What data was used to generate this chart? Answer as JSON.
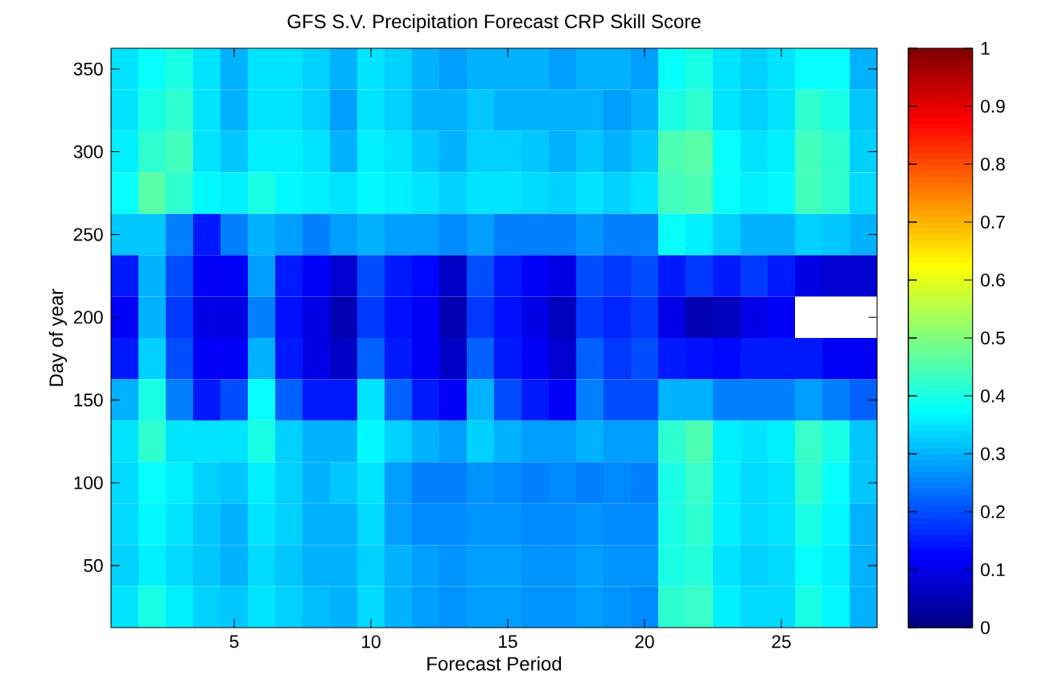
{
  "chart_data": {
    "type": "heatmap",
    "title": "GFS S.V. Precipitation Forecast CRP Skill Score",
    "xlabel": "Forecast Period",
    "ylabel": "Day of year",
    "categories": [
      null,
      null,
      null,
      null,
      "5",
      null,
      null,
      null,
      null,
      "10",
      null,
      null,
      null,
      null,
      "15",
      null,
      null,
      null,
      null,
      "20",
      null,
      null,
      null,
      null,
      "25",
      null,
      null,
      null
    ],
    "y_categories": [
      "350",
      null,
      "300",
      null,
      "250",
      null,
      "200",
      null,
      "150",
      null,
      "100",
      null,
      "50",
      null
    ],
    "clim": [
      0,
      1
    ],
    "cticks": [
      0,
      0.1,
      0.2,
      0.3,
      0.4,
      0.5,
      0.6,
      0.7,
      0.8,
      0.9,
      1
    ],
    "cells": [
      [
        0.35,
        0.38,
        0.4,
        0.35,
        0.3,
        0.35,
        0.35,
        0.33,
        0.3,
        0.35,
        0.33,
        0.3,
        0.28,
        0.3,
        0.3,
        0.3,
        0.28,
        0.3,
        0.3,
        0.28,
        0.38,
        0.4,
        0.35,
        0.33,
        0.35,
        0.38,
        0.38,
        0.3
      ],
      [
        0.35,
        0.4,
        0.42,
        0.35,
        0.3,
        0.35,
        0.35,
        0.33,
        0.28,
        0.35,
        0.33,
        0.3,
        0.3,
        0.32,
        0.3,
        0.3,
        0.3,
        0.3,
        0.28,
        0.3,
        0.4,
        0.42,
        0.35,
        0.33,
        0.35,
        0.42,
        0.4,
        0.32
      ],
      [
        0.36,
        0.42,
        0.44,
        0.35,
        0.32,
        0.36,
        0.36,
        0.35,
        0.3,
        0.36,
        0.35,
        0.32,
        0.3,
        0.33,
        0.33,
        0.32,
        0.3,
        0.32,
        0.3,
        0.32,
        0.45,
        0.46,
        0.38,
        0.35,
        0.36,
        0.44,
        0.42,
        0.33
      ],
      [
        0.38,
        0.46,
        0.42,
        0.37,
        0.36,
        0.4,
        0.37,
        0.36,
        0.35,
        0.37,
        0.36,
        0.35,
        0.33,
        0.35,
        0.35,
        0.34,
        0.33,
        0.35,
        0.33,
        0.35,
        0.44,
        0.45,
        0.38,
        0.36,
        0.37,
        0.44,
        0.42,
        0.34
      ],
      [
        0.32,
        0.32,
        0.25,
        0.15,
        0.25,
        0.3,
        0.28,
        0.25,
        0.28,
        0.3,
        0.28,
        0.28,
        0.26,
        0.28,
        0.25,
        0.25,
        0.25,
        0.27,
        0.25,
        0.25,
        0.38,
        0.36,
        0.33,
        0.3,
        0.3,
        0.33,
        0.32,
        0.3
      ],
      [
        0.15,
        0.3,
        0.2,
        0.12,
        0.12,
        0.28,
        0.15,
        0.12,
        0.08,
        0.2,
        0.15,
        0.13,
        0.07,
        0.2,
        0.15,
        0.12,
        0.1,
        0.2,
        0.18,
        0.2,
        0.15,
        0.18,
        0.15,
        0.18,
        0.15,
        0.1,
        0.08,
        0.08
      ],
      [
        0.12,
        0.3,
        0.18,
        0.1,
        0.1,
        0.25,
        0.14,
        0.1,
        0.05,
        0.18,
        0.14,
        0.12,
        0.05,
        0.18,
        0.14,
        0.1,
        0.06,
        0.18,
        0.16,
        0.18,
        0.1,
        0.05,
        0.06,
        0.1,
        0.12,
        null,
        null,
        null
      ],
      [
        0.15,
        0.33,
        0.2,
        0.12,
        0.12,
        0.3,
        0.15,
        0.1,
        0.07,
        0.22,
        0.15,
        0.12,
        0.07,
        0.22,
        0.15,
        0.12,
        0.08,
        0.22,
        0.18,
        0.2,
        0.15,
        0.14,
        0.13,
        0.15,
        0.15,
        0.15,
        0.12,
        0.12
      ],
      [
        0.3,
        0.4,
        0.25,
        0.15,
        0.2,
        0.38,
        0.22,
        0.15,
        0.15,
        0.35,
        0.22,
        0.15,
        0.12,
        0.3,
        0.2,
        0.15,
        0.12,
        0.25,
        0.2,
        0.2,
        0.3,
        0.3,
        0.25,
        0.25,
        0.25,
        0.28,
        0.25,
        0.22
      ],
      [
        0.35,
        0.42,
        0.35,
        0.35,
        0.35,
        0.4,
        0.33,
        0.3,
        0.3,
        0.37,
        0.33,
        0.3,
        0.28,
        0.33,
        0.3,
        0.28,
        0.28,
        0.3,
        0.28,
        0.28,
        0.42,
        0.45,
        0.36,
        0.35,
        0.36,
        0.43,
        0.4,
        0.32
      ],
      [
        0.34,
        0.38,
        0.36,
        0.33,
        0.32,
        0.36,
        0.33,
        0.3,
        0.32,
        0.35,
        0.28,
        0.25,
        0.25,
        0.27,
        0.26,
        0.25,
        0.26,
        0.25,
        0.26,
        0.25,
        0.4,
        0.43,
        0.36,
        0.34,
        0.35,
        0.42,
        0.38,
        0.32
      ],
      [
        0.34,
        0.37,
        0.35,
        0.32,
        0.3,
        0.35,
        0.33,
        0.3,
        0.3,
        0.34,
        0.28,
        0.26,
        0.26,
        0.27,
        0.27,
        0.26,
        0.26,
        0.27,
        0.26,
        0.26,
        0.4,
        0.42,
        0.36,
        0.34,
        0.35,
        0.4,
        0.37,
        0.3
      ],
      [
        0.33,
        0.36,
        0.34,
        0.32,
        0.3,
        0.34,
        0.32,
        0.3,
        0.3,
        0.33,
        0.3,
        0.28,
        0.27,
        0.28,
        0.28,
        0.27,
        0.27,
        0.28,
        0.27,
        0.27,
        0.4,
        0.41,
        0.35,
        0.33,
        0.34,
        0.38,
        0.36,
        0.3
      ],
      [
        0.35,
        0.4,
        0.36,
        0.33,
        0.32,
        0.35,
        0.33,
        0.31,
        0.3,
        0.34,
        0.3,
        0.28,
        0.27,
        0.28,
        0.28,
        0.27,
        0.27,
        0.28,
        0.27,
        0.26,
        0.42,
        0.43,
        0.36,
        0.34,
        0.34,
        0.4,
        0.37,
        0.3
      ]
    ]
  }
}
